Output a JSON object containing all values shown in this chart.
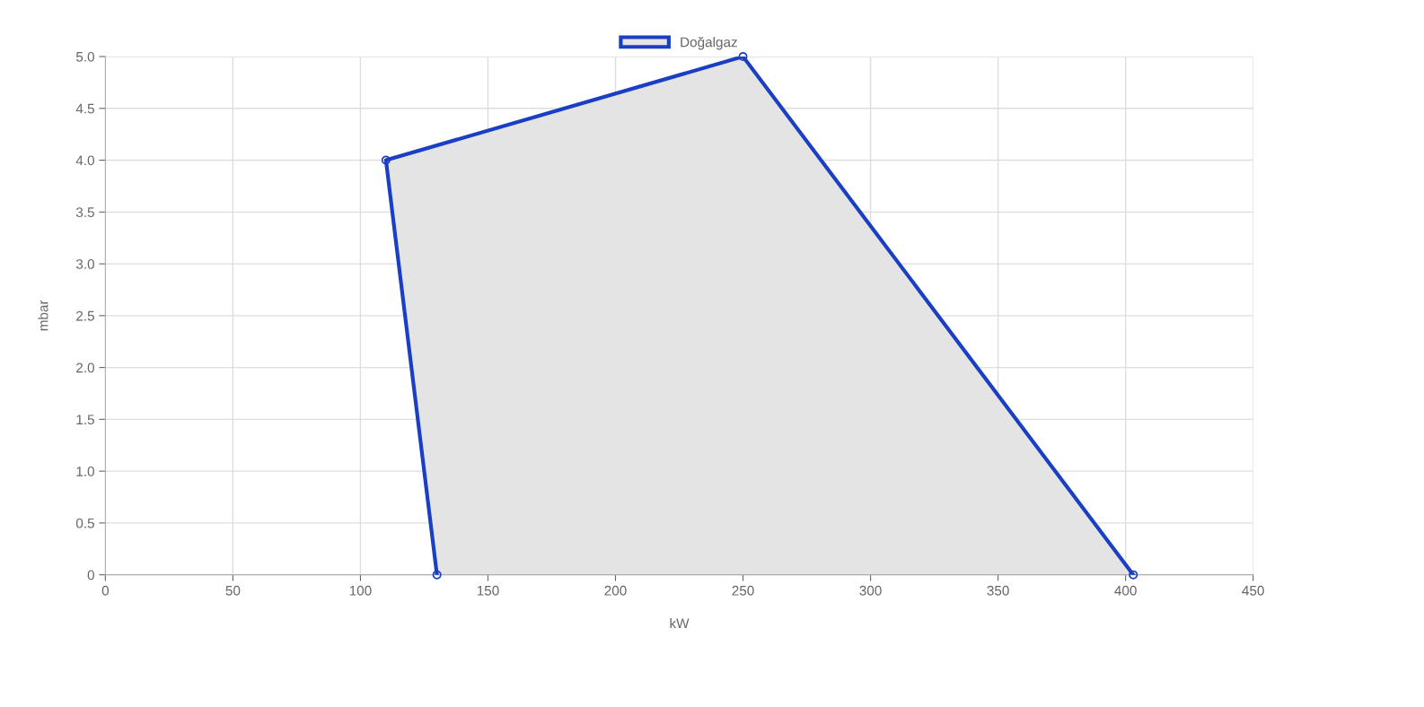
{
  "chart_data": {
    "type": "area",
    "xlabel": "kW",
    "ylabel": "mbar",
    "series": [
      {
        "name": "Doğalgaz",
        "color": "#1a3fc4",
        "x": [
          130,
          110,
          250,
          403
        ],
        "values": [
          0,
          4,
          5,
          0
        ]
      }
    ],
    "xlim": [
      0,
      450
    ],
    "xticks": [
      0,
      50,
      100,
      150,
      200,
      250,
      300,
      350,
      400,
      450
    ],
    "ylim": [
      0,
      5
    ],
    "yticks": [
      0,
      0.5,
      {
        "value": 1,
        "label": "1.0"
      },
      1.5,
      {
        "value": 2,
        "label": "2.0"
      },
      2.5,
      {
        "value": 3,
        "label": "3.0"
      },
      3.5,
      {
        "value": 4,
        "label": "4.0"
      },
      4.5,
      {
        "value": 5,
        "label": "5.0"
      }
    ],
    "grid": true,
    "legend": "top",
    "marker": "circle",
    "line_style": "solid"
  }
}
